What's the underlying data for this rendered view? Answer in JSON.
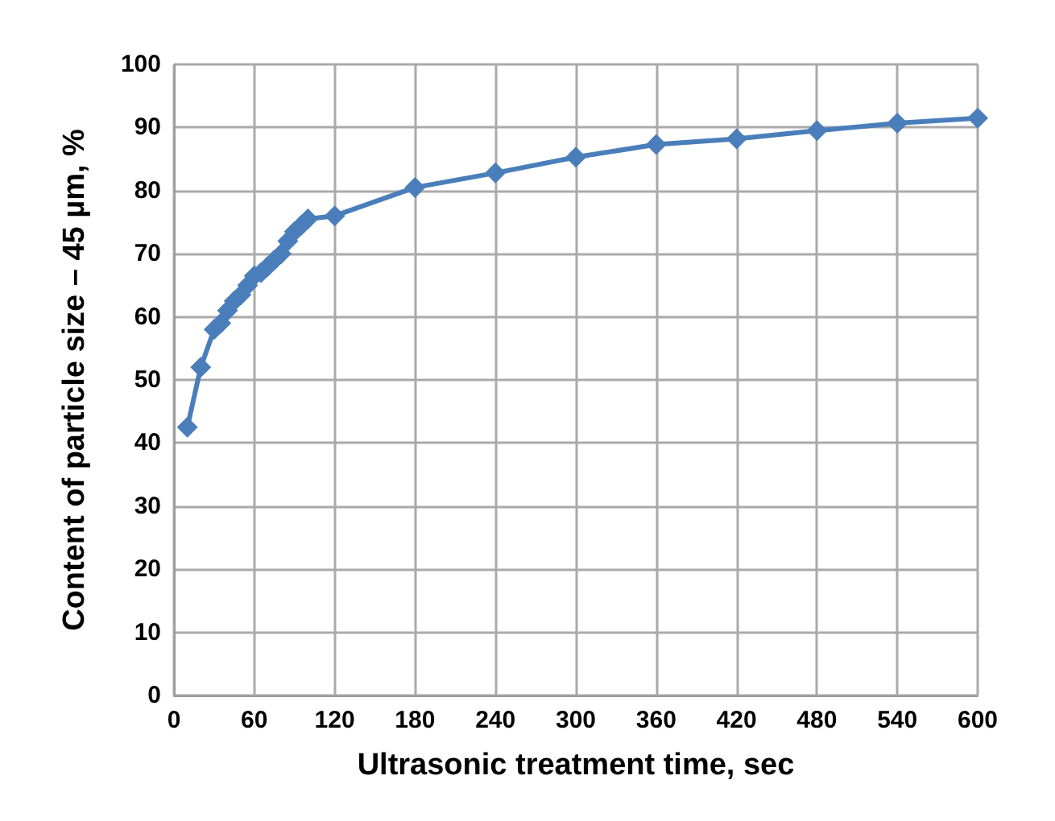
{
  "chart_data": {
    "type": "line",
    "xlabel": "Ultrasonic treatment time, sec",
    "ylabel": "Content of particle size – 45 µm, %",
    "x": [
      10,
      20,
      30,
      35,
      40,
      45,
      50,
      55,
      60,
      65,
      70,
      75,
      80,
      85,
      90,
      95,
      100,
      120,
      180,
      240,
      300,
      360,
      420,
      480,
      540,
      600
    ],
    "series": [
      {
        "color": "#4a7ebb",
        "values": [
          42.5,
          52,
          58,
          59,
          61,
          62.5,
          63.5,
          65,
          66.5,
          67,
          68,
          69,
          70,
          72,
          73.5,
          74.5,
          75.5,
          76,
          80.5,
          82.8,
          85.3,
          87.3,
          88.2,
          89.5,
          90.7,
          91.5
        ]
      }
    ],
    "xlim": [
      0,
      600
    ],
    "xticks": [
      0,
      60,
      120,
      180,
      240,
      300,
      360,
      420,
      480,
      540,
      600
    ],
    "ylim": [
      0,
      100
    ],
    "yticks": [
      0,
      10,
      20,
      30,
      40,
      50,
      60,
      70,
      80,
      90,
      100
    ],
    "grid": true,
    "marker": "diamond",
    "line_style": "solid"
  }
}
